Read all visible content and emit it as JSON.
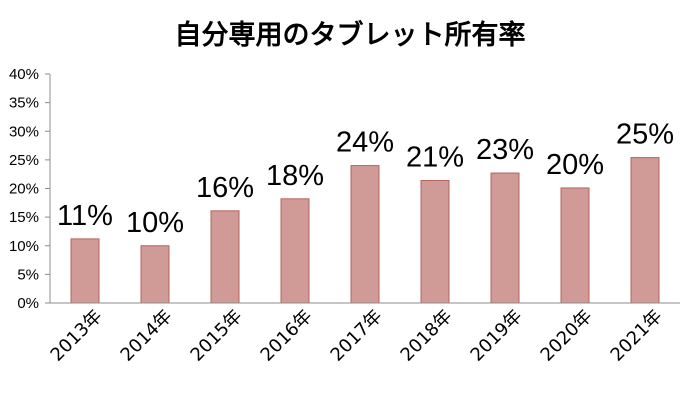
{
  "chart_data": {
    "type": "bar",
    "title": "自分専用のタブレット所有率",
    "xlabel": "",
    "ylabel": "",
    "categories": [
      "2013年",
      "2014年",
      "2015年",
      "2016年",
      "2017年",
      "2018年",
      "2019年",
      "2020年",
      "2021年"
    ],
    "values": [
      11.2,
      10.0,
      16.1,
      18.2,
      24.0,
      21.4,
      22.7,
      20.1,
      25.4
    ],
    "data_labels": [
      "11%",
      "10%",
      "16%",
      "18%",
      "24%",
      "21%",
      "23%",
      "20%",
      "25%"
    ],
    "yticks": [
      "0%",
      "5%",
      "10%",
      "15%",
      "20%",
      "25%",
      "30%",
      "35%",
      "40%"
    ],
    "ylim": [
      0,
      40
    ],
    "grid": false,
    "legend": "none",
    "colors": {
      "bar_fill": "#d09b97",
      "bar_stroke": "#b5635d",
      "axis": "#8c8c8c"
    }
  }
}
